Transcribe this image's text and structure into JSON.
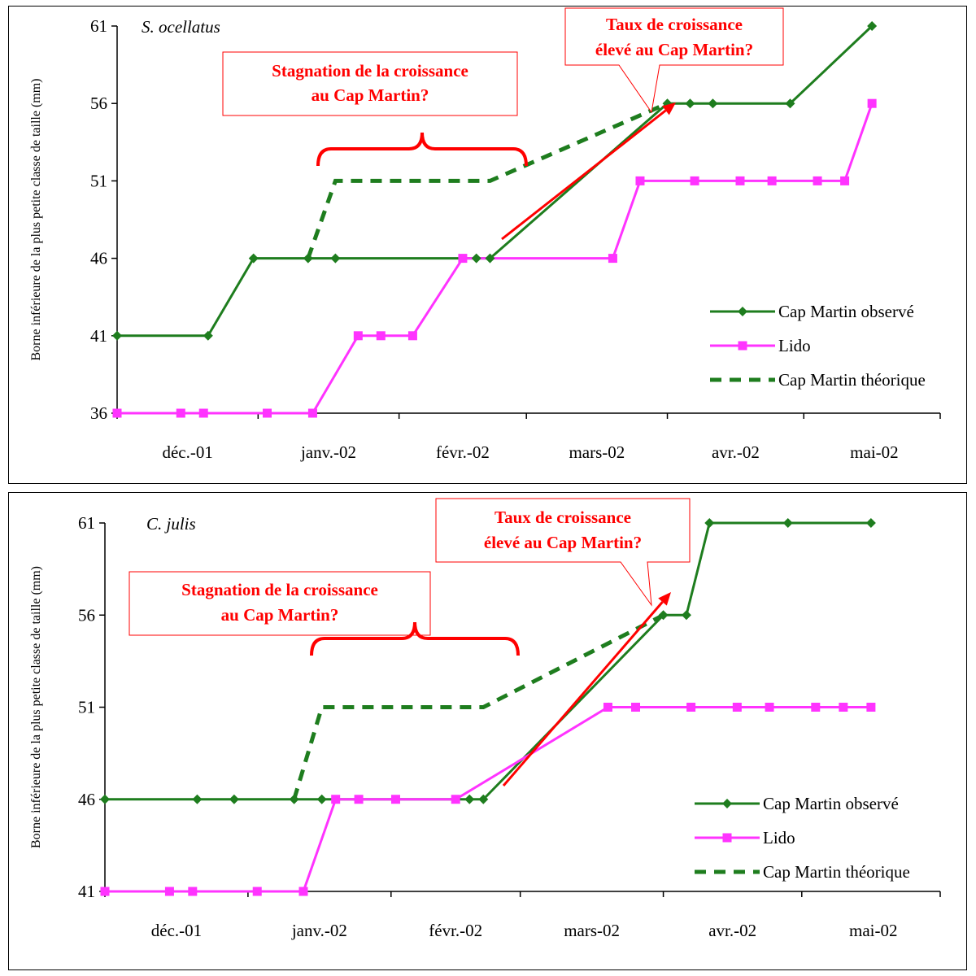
{
  "chart_data": [
    {
      "type": "line",
      "species": "S. ocellatus",
      "ylabel": "Borne inférieure de la plus petite classe de taille (mm)",
      "x_tick_labels": [
        "déc.-01",
        "janv.-02",
        "févr.-02",
        "mars-02",
        "avr.-02",
        "mai-02"
      ],
      "x_range": [
        "2001-12-01",
        "2002-05-31"
      ],
      "ylim": [
        36,
        61
      ],
      "y_ticks": [
        36,
        41,
        46,
        51,
        56,
        61
      ],
      "legend_position": "bottom-right",
      "series": [
        {
          "name": "Cap Martin observé",
          "color": "#1e7d1e",
          "style": "solid",
          "marker": "diamond",
          "points": [
            {
              "x": "2001-12-01",
              "y": 41
            },
            {
              "x": "2001-12-21",
              "y": 41
            },
            {
              "x": "2001-12-31",
              "y": 46
            },
            {
              "x": "2002-01-12",
              "y": 46
            },
            {
              "x": "2002-01-18",
              "y": 46
            },
            {
              "x": "2002-02-18",
              "y": 46
            },
            {
              "x": "2002-02-21",
              "y": 46
            },
            {
              "x": "2002-04-01",
              "y": 56
            },
            {
              "x": "2002-04-06",
              "y": 56
            },
            {
              "x": "2002-04-11",
              "y": 56
            },
            {
              "x": "2002-04-28",
              "y": 56
            },
            {
              "x": "2002-05-16",
              "y": 61
            }
          ]
        },
        {
          "name": "Lido",
          "color": "#ff33ff",
          "style": "solid",
          "marker": "square",
          "points": [
            {
              "x": "2001-12-01",
              "y": 36
            },
            {
              "x": "2001-12-15",
              "y": 36
            },
            {
              "x": "2001-12-20",
              "y": 36
            },
            {
              "x": "2002-01-03",
              "y": 36
            },
            {
              "x": "2002-01-13",
              "y": 36
            },
            {
              "x": "2002-01-23",
              "y": 41
            },
            {
              "x": "2002-01-28",
              "y": 41
            },
            {
              "x": "2002-02-04",
              "y": 41
            },
            {
              "x": "2002-02-15",
              "y": 46
            },
            {
              "x": "2002-03-20",
              "y": 46
            },
            {
              "x": "2002-03-26",
              "y": 51
            },
            {
              "x": "2002-04-07",
              "y": 51
            },
            {
              "x": "2002-04-17",
              "y": 51
            },
            {
              "x": "2002-04-24",
              "y": 51
            },
            {
              "x": "2002-05-04",
              "y": 51
            },
            {
              "x": "2002-05-10",
              "y": 51
            },
            {
              "x": "2002-05-16",
              "y": 56
            }
          ]
        },
        {
          "name": "Cap Martin théorique",
          "color": "#1e7d1e",
          "style": "dashed",
          "marker": "none",
          "points": [
            {
              "x": "2002-01-12",
              "y": 46
            },
            {
              "x": "2002-01-18",
              "y": 51
            },
            {
              "x": "2002-02-21",
              "y": 51
            },
            {
              "x": "2002-04-01",
              "y": 56
            }
          ]
        }
      ],
      "annotations": {
        "stagnation": [
          "Stagnation de la croissance",
          "au Cap Martin?"
        ],
        "taux": [
          "Taux de croissance",
          "élevé au Cap Martin?"
        ]
      }
    },
    {
      "type": "line",
      "species": "C. julis",
      "ylabel": "Borne inférieure de la plus petite classe de taille (mm)",
      "x_tick_labels": [
        "déc.-01",
        "janv.-02",
        "févr.-02",
        "mars-02",
        "avr.-02",
        "mai-02"
      ],
      "x_range": [
        "2001-12-01",
        "2002-05-31"
      ],
      "ylim": [
        41,
        61
      ],
      "y_ticks": [
        41,
        46,
        51,
        56,
        61
      ],
      "legend_position": "bottom-right",
      "series": [
        {
          "name": "Cap Martin observé",
          "color": "#1e7d1e",
          "style": "solid",
          "marker": "diamond",
          "points": [
            {
              "x": "2001-12-01",
              "y": 46
            },
            {
              "x": "2001-12-21",
              "y": 46
            },
            {
              "x": "2001-12-29",
              "y": 46
            },
            {
              "x": "2002-01-11",
              "y": 46
            },
            {
              "x": "2002-01-17",
              "y": 46
            },
            {
              "x": "2002-02-18",
              "y": 46
            },
            {
              "x": "2002-02-21",
              "y": 46
            },
            {
              "x": "2002-04-01",
              "y": 56
            },
            {
              "x": "2002-04-06",
              "y": 56
            },
            {
              "x": "2002-04-11",
              "y": 61
            },
            {
              "x": "2002-04-28",
              "y": 61
            },
            {
              "x": "2002-05-16",
              "y": 61
            }
          ]
        },
        {
          "name": "Lido",
          "color": "#ff33ff",
          "style": "solid",
          "marker": "square",
          "points": [
            {
              "x": "2001-12-01",
              "y": 41
            },
            {
              "x": "2001-12-15",
              "y": 41
            },
            {
              "x": "2001-12-20",
              "y": 41
            },
            {
              "x": "2002-01-03",
              "y": 41
            },
            {
              "x": "2002-01-13",
              "y": 41
            },
            {
              "x": "2002-01-20",
              "y": 46
            },
            {
              "x": "2002-01-25",
              "y": 46
            },
            {
              "x": "2002-02-02",
              "y": 46
            },
            {
              "x": "2002-02-15",
              "y": 46
            },
            {
              "x": "2002-03-20",
              "y": 51
            },
            {
              "x": "2002-03-26",
              "y": 51
            },
            {
              "x": "2002-04-07",
              "y": 51
            },
            {
              "x": "2002-04-17",
              "y": 51
            },
            {
              "x": "2002-04-24",
              "y": 51
            },
            {
              "x": "2002-05-04",
              "y": 51
            },
            {
              "x": "2002-05-10",
              "y": 51
            },
            {
              "x": "2002-05-16",
              "y": 51
            }
          ]
        },
        {
          "name": "Cap Martin théorique",
          "color": "#1e7d1e",
          "style": "dashed",
          "marker": "none",
          "points": [
            {
              "x": "2002-01-11",
              "y": 46
            },
            {
              "x": "2002-01-17",
              "y": 51
            },
            {
              "x": "2002-02-21",
              "y": 51
            },
            {
              "x": "2002-04-01",
              "y": 56
            }
          ]
        }
      ],
      "annotations": {
        "stagnation": [
          "Stagnation de la croissance",
          "au Cap Martin?"
        ],
        "taux": [
          "Taux de croissance",
          "élevé au Cap Martin?"
        ]
      }
    }
  ],
  "colors": {
    "annotation_red": "#ff0000",
    "green": "#1e7d1e",
    "magenta": "#ff33ff"
  }
}
